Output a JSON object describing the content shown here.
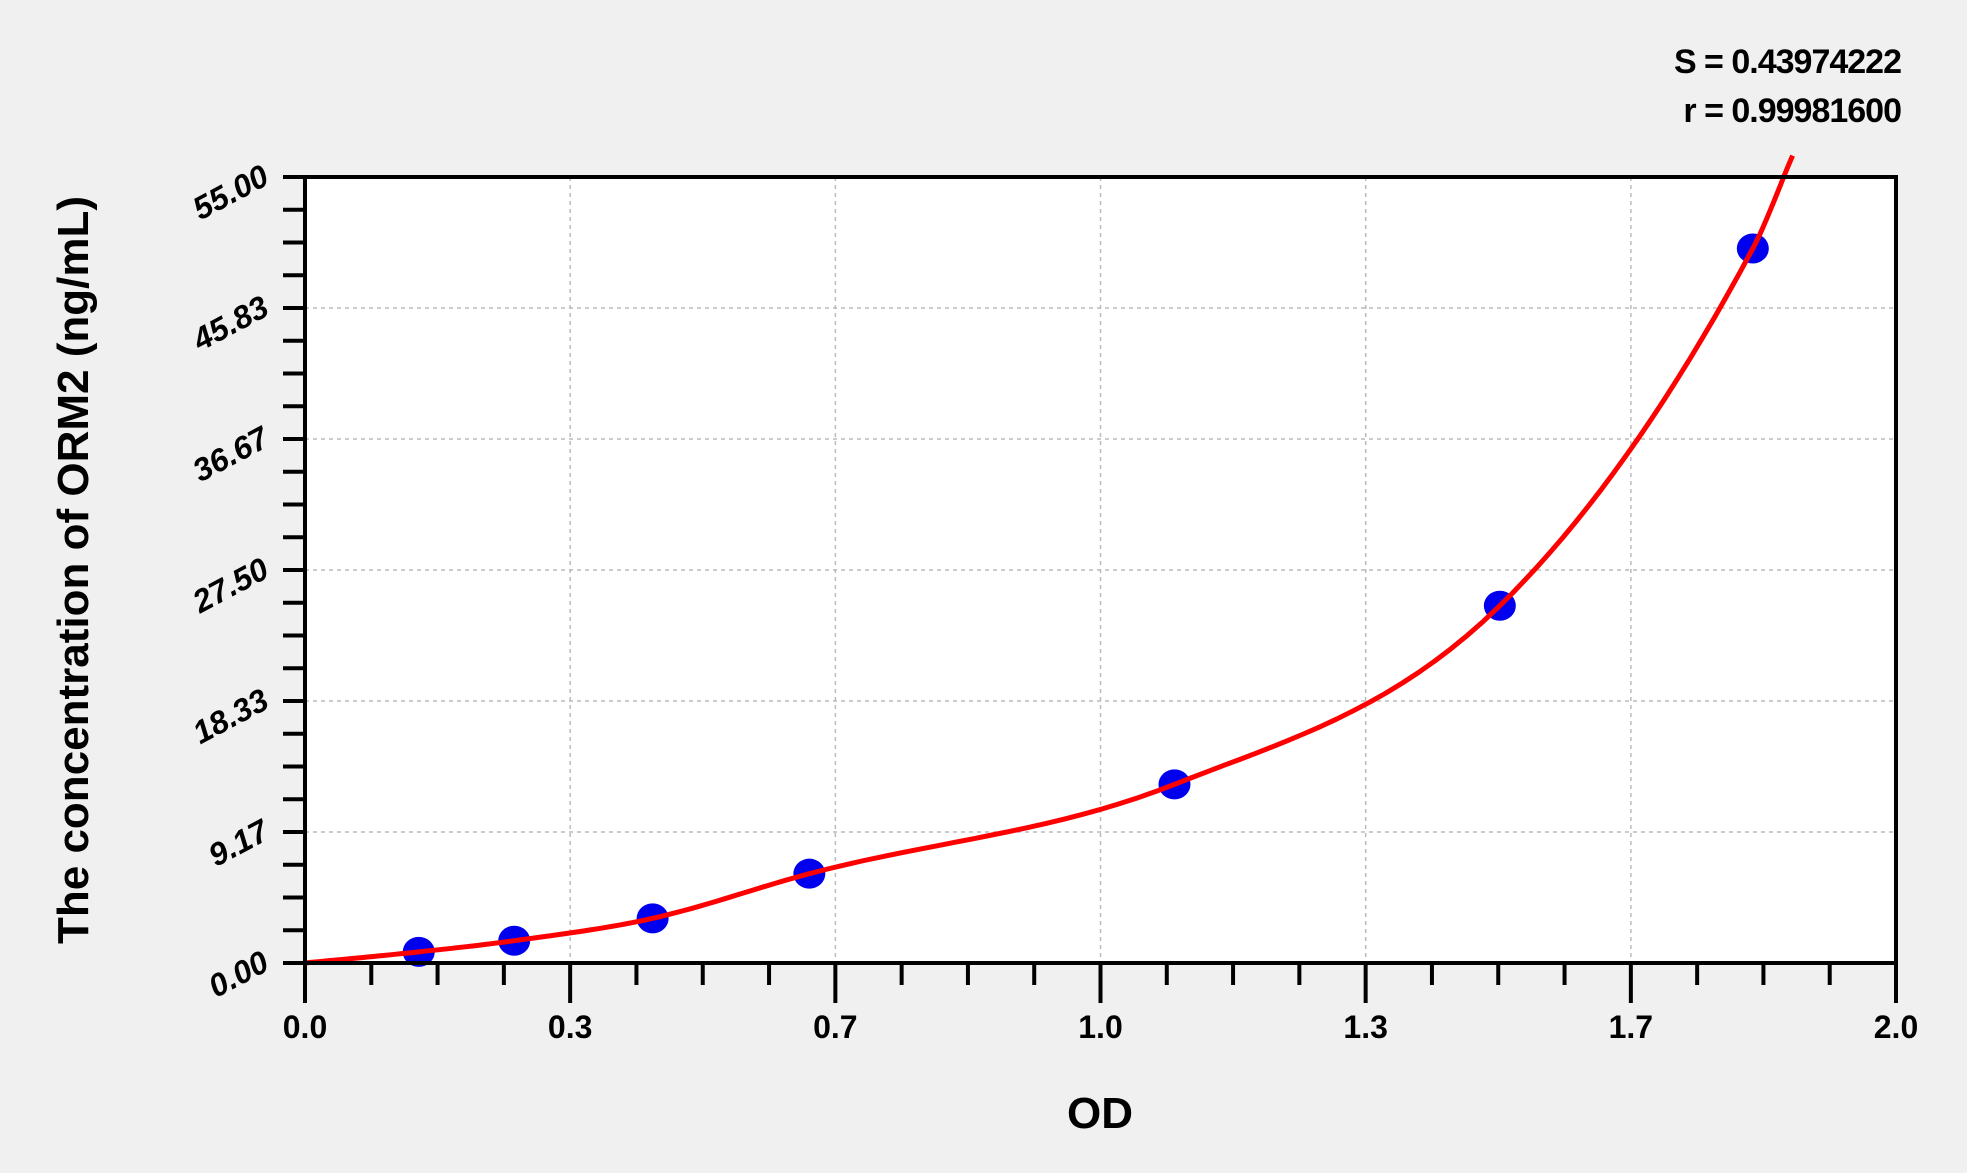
{
  "chart_data": {
    "type": "scatter",
    "xlabel": "OD",
    "ylabel": "The concentration of ORM2 (ng/mL)",
    "xlim": [
      0,
      2.0
    ],
    "ylim": [
      0,
      55
    ],
    "x_ticks": [
      0,
      0.3333,
      0.6667,
      1.0,
      1.3333,
      1.6667,
      2.0
    ],
    "x_tick_labels": [
      "0.0",
      "0.3",
      "0.7",
      "1.0",
      "1.3",
      "1.7",
      "2.0"
    ],
    "y_ticks": [
      0,
      9.1667,
      18.3333,
      27.5,
      36.6667,
      45.8333,
      55
    ],
    "y_tick_labels": [
      "0.00",
      "9.17",
      "18.33",
      "27.50",
      "36.67",
      "45.83",
      "55.00"
    ],
    "grid": true,
    "series": [
      {
        "type": "scatter",
        "color": "#0000ee",
        "x": [
          0.143,
          0.263,
          0.437,
          0.634,
          1.093,
          1.502,
          1.82
        ],
        "y": [
          0.78,
          1.56,
          3.125,
          6.25,
          12.5,
          25,
          50
        ]
      },
      {
        "type": "line",
        "color": "#ff0000"
      }
    ],
    "annotations": {
      "s": "S = 0.43974222",
      "r": "r = 0.99981600"
    }
  }
}
